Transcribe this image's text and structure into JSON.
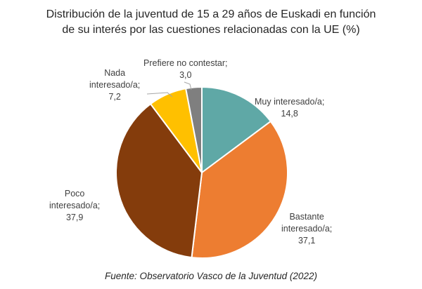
{
  "chart_data": {
    "type": "pie",
    "title": "Distribución de la juventud de 15 a 29 años de Euskadi en función de su interés por las cuestiones relacionadas con la UE (%)",
    "title_lines": [
      "Distribución de la juventud de 15 a 29 años de Euskadi en función",
      "de su interés por las cuestiones relacionadas con la UE (%)"
    ],
    "slices": [
      {
        "label": "Muy interesado/a",
        "value": 14.8,
        "value_text": "14,8",
        "color": "#5fa8a6",
        "label_lines": [
          "Muy interesado/a;",
          "14,8"
        ]
      },
      {
        "label": "Bastante interesado/a",
        "value": 37.1,
        "value_text": "37,1",
        "color": "#ed7d31",
        "label_lines": [
          "Bastante",
          "interesado/a;",
          "37,1"
        ]
      },
      {
        "label": "Poco interesado/a",
        "value": 37.9,
        "value_text": "37,9",
        "color": "#843c0c",
        "label_lines": [
          "Poco",
          "interesado/a;",
          "37,9"
        ]
      },
      {
        "label": "Nada interesado/a",
        "value": 7.2,
        "value_text": "7,2",
        "color": "#ffc000",
        "label_lines": [
          "Nada",
          "interesado/a;",
          "7,2"
        ]
      },
      {
        "label": "Prefiere no contestar",
        "value": 3.0,
        "value_text": "3,0",
        "color": "#7f7f7f",
        "label_lines": [
          "Prefiere no contestar;",
          "3,0"
        ]
      }
    ],
    "source": "Fuente: Observatorio Vasco de la Juventud (2022)"
  }
}
